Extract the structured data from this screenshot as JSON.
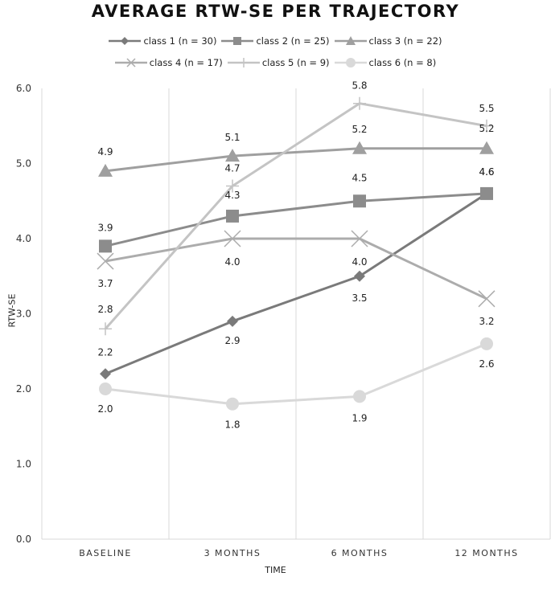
{
  "chart_data": {
    "type": "line",
    "title": "AVERAGE RTW-SE PER TRAJECTORY",
    "xlabel": "TIME",
    "ylabel": "RTW-SE",
    "categories": [
      "BASELINE",
      "3 MONTHS",
      "6 MONTHS",
      "12 MONTHS"
    ],
    "ylim": [
      0,
      6
    ],
    "yticks": [
      "0.0",
      "1.0",
      "2.0",
      "3.0",
      "4.0",
      "5.0",
      "6.0"
    ],
    "grid": "vertical",
    "legend_position": "top",
    "series": [
      {
        "name": "class 1 (n = 30)",
        "values": [
          2.2,
          2.9,
          3.5,
          4.6
        ],
        "labels": [
          "2.2",
          "2.9",
          "3.5",
          "4.6"
        ],
        "marker": "diamond",
        "color": "#7a7a7a"
      },
      {
        "name": "class 2 (n = 25)",
        "values": [
          3.9,
          4.3,
          4.5,
          4.6
        ],
        "labels": [
          "3.9",
          "4.3",
          "4.5",
          "4.6"
        ],
        "marker": "square",
        "color": "#8c8c8c"
      },
      {
        "name": "class 3 (n = 22)",
        "values": [
          4.9,
          5.1,
          5.2,
          5.2
        ],
        "labels": [
          "4.9",
          "5.1",
          "5.2",
          "5.2"
        ],
        "marker": "triangle",
        "color": "#9f9f9f"
      },
      {
        "name": "class 4 (n = 17)",
        "values": [
          3.7,
          4.0,
          4.0,
          3.2
        ],
        "labels": [
          "3.7",
          "4.0",
          "4.0",
          "3.2"
        ],
        "marker": "x",
        "color": "#acacac"
      },
      {
        "name": "class 5 (n = 9)",
        "values": [
          2.8,
          4.7,
          5.8,
          5.5
        ],
        "labels": [
          "2.8",
          "4.7",
          "5.8",
          "5.5"
        ],
        "marker": "plus",
        "color": "#c4c4c4"
      },
      {
        "name": "class 6 (n = 8)",
        "values": [
          2.0,
          1.8,
          1.9,
          2.6
        ],
        "labels": [
          "2.0",
          "1.8",
          "1.9",
          "2.6"
        ],
        "marker": "circle",
        "color": "#d9d9d9"
      }
    ]
  }
}
